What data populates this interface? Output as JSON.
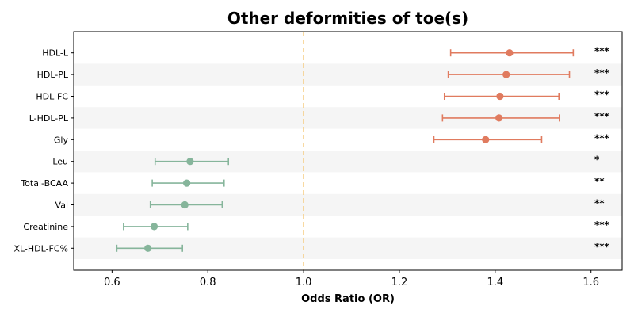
{
  "chart_data": {
    "type": "forest",
    "title": "Other deformities of toe(s)",
    "xlabel": "Odds Ratio (OR)",
    "ylabel": "",
    "xlim": [
      0.52,
      1.665
    ],
    "xticks": [
      0.6,
      0.8,
      1.0,
      1.2,
      1.4,
      1.6
    ],
    "xtick_labels": [
      "0.6",
      "0.8",
      "1.0",
      "1.2",
      "1.4",
      "1.6"
    ],
    "reference_line": 1.0,
    "grid": false,
    "row_striping": true,
    "colors": {
      "risk": "#e07b5f",
      "protective": "#86b59b",
      "reference_line": "#f5c97a",
      "stripe": "#f5f5f5"
    },
    "rows": [
      {
        "label": "HDL-L",
        "or": 1.43,
        "lower": 1.307,
        "upper": 1.563,
        "sig": "***"
      },
      {
        "label": "HDL-PL",
        "or": 1.423,
        "lower": 1.302,
        "upper": 1.555,
        "sig": "***"
      },
      {
        "label": "HDL-FC",
        "or": 1.41,
        "lower": 1.294,
        "upper": 1.533,
        "sig": "***"
      },
      {
        "label": "L-HDL-PL",
        "or": 1.408,
        "lower": 1.29,
        "upper": 1.534,
        "sig": "***"
      },
      {
        "label": "Gly",
        "or": 1.38,
        "lower": 1.272,
        "upper": 1.497,
        "sig": "***"
      },
      {
        "label": "Leu",
        "or": 0.763,
        "lower": 0.69,
        "upper": 0.843,
        "sig": "*"
      },
      {
        "label": "Total-BCAA",
        "or": 0.756,
        "lower": 0.684,
        "upper": 0.834,
        "sig": "**"
      },
      {
        "label": "Val",
        "or": 0.752,
        "lower": 0.68,
        "upper": 0.83,
        "sig": "**"
      },
      {
        "label": "Creatinine",
        "or": 0.688,
        "lower": 0.624,
        "upper": 0.758,
        "sig": "***"
      },
      {
        "label": "XL-HDL-FC%",
        "or": 0.675,
        "lower": 0.61,
        "upper": 0.747,
        "sig": "***"
      }
    ]
  }
}
